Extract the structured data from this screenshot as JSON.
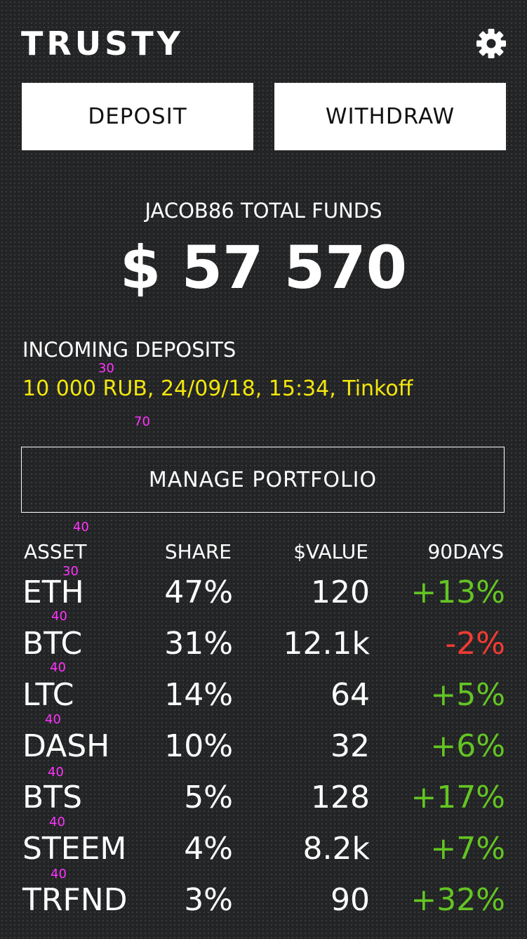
{
  "header": {
    "logo": "TRUSTY",
    "settings_icon": "gear-icon"
  },
  "actions": {
    "deposit_label": "DEPOSIT",
    "withdraw_label": "WITHDRAW",
    "manage_label": "MANAGE PORTFOLIO"
  },
  "funds": {
    "label": "JACOB86 TOTAL FUNDS",
    "value": "$ 57 570"
  },
  "incoming": {
    "label": "INCOMING DEPOSITS",
    "item": "10 000 RUB, 24/09/18, 15:34, Tinkoff"
  },
  "annotations": [
    "30",
    "70",
    "40",
    "30",
    "40",
    "40",
    "40",
    "40",
    "40",
    "40"
  ],
  "table": {
    "headers": [
      "ASSET",
      "SHARE",
      "$VALUE",
      "90DAYS"
    ],
    "rows": [
      {
        "asset": "ETH",
        "share": "47%",
        "value": "120",
        "change": "+13%",
        "trend": "up"
      },
      {
        "asset": "BTC",
        "share": "31%",
        "value": "12.1k",
        "change": "-2%",
        "trend": "down"
      },
      {
        "asset": "LTC",
        "share": "14%",
        "value": "64",
        "change": "+5%",
        "trend": "up"
      },
      {
        "asset": "DASH",
        "share": "10%",
        "value": "32",
        "change": "+6%",
        "trend": "up"
      },
      {
        "asset": "BTS",
        "share": "5%",
        "value": "128",
        "change": "+17%",
        "trend": "up"
      },
      {
        "asset": "STEEM",
        "share": "4%",
        "value": "8.2k",
        "change": "+7%",
        "trend": "up"
      },
      {
        "asset": "TRFND",
        "share": "3%",
        "value": "90",
        "change": "+32%",
        "trend": "up"
      }
    ]
  },
  "colors": {
    "background": "#232425",
    "positive": "#63c523",
    "negative": "#f23b33",
    "incoming": "#f2e60e",
    "annotation": "#ff33ff"
  }
}
